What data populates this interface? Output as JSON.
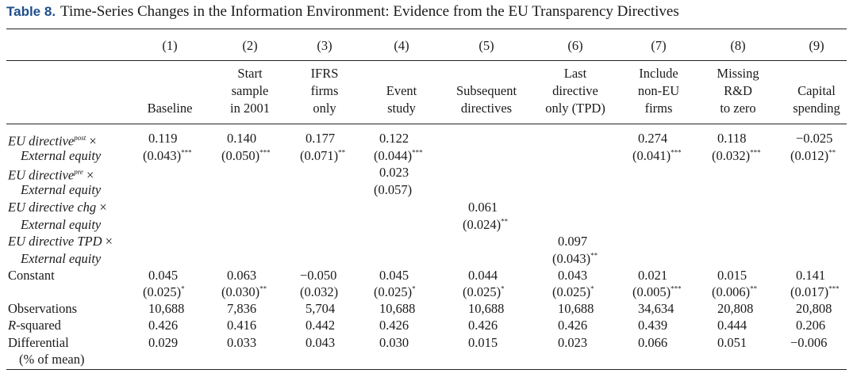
{
  "table": {
    "label": "Table 8.",
    "title": "Time-Series Changes in the Information Environment: Evidence from the EU Transparency Directives",
    "col_numbers": [
      "(1)",
      "(2)",
      "(3)",
      "(4)",
      "(5)",
      "(6)",
      "(7)",
      "(8)",
      "(9)"
    ],
    "col_headers": [
      [
        "Baseline"
      ],
      [
        "Start",
        "sample",
        "in 2001"
      ],
      [
        "IFRS",
        "firms",
        "only"
      ],
      [
        "Event",
        "study"
      ],
      [
        "Subsequent",
        "directives"
      ],
      [
        "Last",
        "directive",
        "only (TPD)"
      ],
      [
        "Include",
        "non-EU",
        "firms"
      ],
      [
        "Missing",
        "R&D",
        "to zero"
      ],
      [
        "Capital",
        "spending"
      ]
    ],
    "rows": {
      "post_label": "EU directive",
      "post_sup": "post",
      "times": "×",
      "ext_equity": "External equity",
      "pre_label": "EU directive",
      "pre_sup": "pre",
      "chg_label": "EU directive chg",
      "tpd_label": "EU directive TPD",
      "constant": "Constant",
      "observations": "Observations",
      "r_squared_r": "R",
      "r_squared_rest": "-squared",
      "differential": "Differential",
      "differential_sub": "(% of mean)"
    },
    "post": {
      "coef": [
        "0.119",
        "0.140",
        "0.177",
        "0.122",
        "",
        "",
        "0.274",
        "0.118",
        "−0.025"
      ],
      "se": [
        "(0.043)",
        "(0.050)",
        "(0.071)",
        "(0.044)",
        "",
        "",
        "(0.041)",
        "(0.032)",
        "(0.012)"
      ],
      "stars": [
        "***",
        "***",
        "**",
        "***",
        "",
        "",
        "***",
        "***",
        "**"
      ]
    },
    "pre": {
      "coef": "0.023",
      "se": "(0.057)"
    },
    "chg": {
      "coef": "0.061",
      "se": "(0.024)",
      "stars": "**"
    },
    "tpd": {
      "coef": "0.097",
      "se": "(0.043)",
      "stars": "**"
    },
    "constant": {
      "coef": [
        "0.045",
        "0.063",
        "−0.050",
        "0.045",
        "0.044",
        "0.043",
        "0.021",
        "0.015",
        "0.141"
      ],
      "se": [
        "(0.025)",
        "(0.030)",
        "(0.032)",
        "(0.025)",
        "(0.025)",
        "(0.025)",
        "(0.005)",
        "(0.006)",
        "(0.017)"
      ],
      "stars": [
        "*",
        "**",
        "",
        "*",
        "*",
        "*",
        "***",
        "**",
        "***"
      ]
    },
    "observations": [
      "10,688",
      "7,836",
      "5,704",
      "10,688",
      "10,688",
      "10,688",
      "34,634",
      "20,808",
      "20,808"
    ],
    "r_squared": [
      "0.426",
      "0.416",
      "0.442",
      "0.426",
      "0.426",
      "0.426",
      "0.439",
      "0.444",
      "0.206"
    ],
    "differential": [
      "0.029",
      "0.033",
      "0.043",
      "0.030",
      "0.015",
      "0.023",
      "0.066",
      "0.051",
      "−0.006"
    ]
  }
}
